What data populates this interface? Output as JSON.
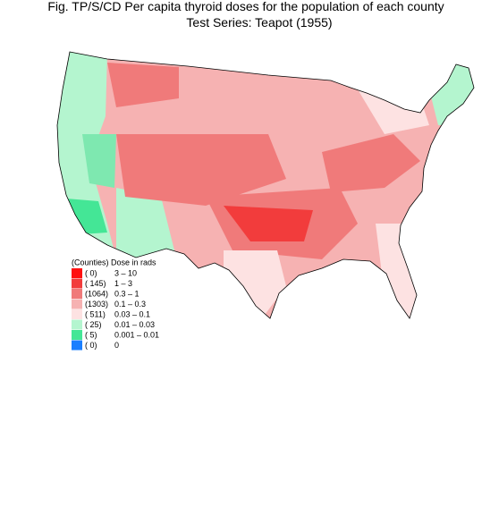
{
  "header": {
    "title": "Fig. TP/S/CD   Per capita thyroid doses for the population of each county",
    "subtitle": "Test Series:  Teapot (1955)"
  },
  "legend": {
    "heading": "(Counties) Dose in rads",
    "items": [
      {
        "count": "(    0)",
        "range": "3      –  10",
        "color": "#ff1010"
      },
      {
        "count": "(  145)",
        "range": "1      –  3",
        "color": "#f23c3c"
      },
      {
        "count": "(1064)",
        "range": "0.3    –  1",
        "color": "#f07a7a"
      },
      {
        "count": "(1303)",
        "range": "0.1    –  0.3",
        "color": "#f6b2b2"
      },
      {
        "count": "(  511)",
        "range": "0.03  –  0.1",
        "color": "#fde2e2"
      },
      {
        "count": "(   25)",
        "range": "0.01  –  0.03",
        "color": "#b4f5cf"
      },
      {
        "count": "(    5)",
        "range": "0.001 –  0.01",
        "color": "#44e696"
      },
      {
        "count": "(    0)",
        "range": "0",
        "color": "#1a7fff"
      }
    ]
  }
}
